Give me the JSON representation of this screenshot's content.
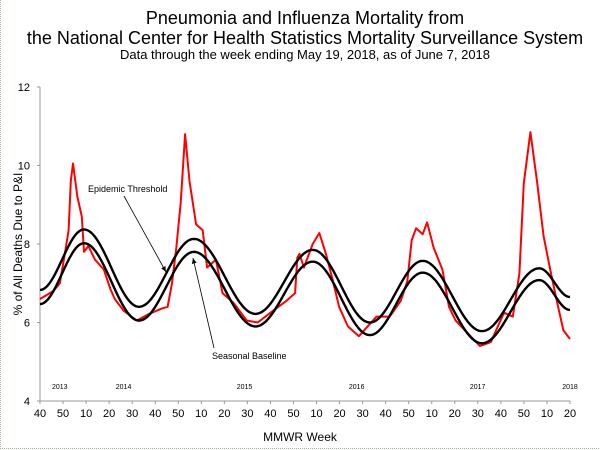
{
  "chart_data": {
    "type": "line",
    "title": "Pneumonia and Influenza Mortality from",
    "title_line2": "the National Center for Health Statistics Mortality Surveillance System",
    "subtitle": "Data through the week ending May 19, 2018, as of June 7, 2018",
    "xlabel": "MMWR Week",
    "ylabel": "% of All Deaths Due to P&I",
    "ylim": [
      4,
      12
    ],
    "yticks": [
      "4",
      "6",
      "8",
      "10",
      "12"
    ],
    "xlim": [
      "2013-W40",
      "2018-W20"
    ],
    "xtick_labels": [
      "40",
      "50",
      "10",
      "20",
      "30",
      "40",
      "50",
      "10",
      "20",
      "30",
      "40",
      "50",
      "10",
      "20",
      "30",
      "40",
      "50",
      "10",
      "20",
      "30",
      "40",
      "50",
      "10",
      "20"
    ],
    "year_labels": [
      {
        "label": "2013",
        "at": "2013-W49"
      },
      {
        "label": "2014",
        "at": "2014-W26"
      },
      {
        "label": "2015",
        "at": "2015-W28"
      },
      {
        "label": "2016",
        "at": "2016-W27"
      },
      {
        "label": "2017",
        "at": "2017-W30"
      },
      {
        "label": "2018",
        "at": "2018-W20"
      }
    ],
    "grid": false,
    "annotations": [
      {
        "text": "Epidemic Threshold",
        "target": "epidemic-threshold"
      },
      {
        "text": "Seasonal Baseline",
        "target": "seasonal-baseline"
      }
    ],
    "colors": {
      "observed": "#ff0000",
      "baseline": "#000000",
      "threshold": "#000000"
    },
    "series": [
      {
        "id": "observed",
        "points": [
          [
            "2013-W40",
            6.6
          ],
          [
            "2013-W46",
            6.8
          ],
          [
            "2013-W49",
            7.0
          ],
          [
            "2013-W51",
            7.65
          ],
          [
            "2014-W01",
            8.35
          ],
          [
            "2014-W02",
            9.6
          ],
          [
            "2014-W03",
            10.05
          ],
          [
            "2014-W05",
            9.2
          ],
          [
            "2014-W07",
            8.7
          ],
          [
            "2014-W08",
            7.8
          ],
          [
            "2014-W10",
            7.95
          ],
          [
            "2014-W13",
            7.6
          ],
          [
            "2014-W17",
            7.35
          ],
          [
            "2014-W20",
            6.85
          ],
          [
            "2014-W22",
            6.6
          ],
          [
            "2014-W26",
            6.3
          ],
          [
            "2014-W32",
            6.05
          ],
          [
            "2014-W37",
            6.2
          ],
          [
            "2014-W43",
            6.35
          ],
          [
            "2014-W46",
            6.4
          ],
          [
            "2014-W48",
            7.0
          ],
          [
            "2014-W50",
            7.9
          ],
          [
            "2014-W52",
            9.05
          ],
          [
            "2015-W01",
            10.8
          ],
          [
            "2015-W03",
            9.6
          ],
          [
            "2015-W06",
            8.5
          ],
          [
            "2015-W09",
            8.35
          ],
          [
            "2015-W11",
            7.4
          ],
          [
            "2015-W15",
            7.6
          ],
          [
            "2015-W18",
            6.75
          ],
          [
            "2015-W23",
            6.5
          ],
          [
            "2015-W29",
            6.05
          ],
          [
            "2015-W34",
            6.0
          ],
          [
            "2015-W41",
            6.3
          ],
          [
            "2015-W47",
            6.55
          ],
          [
            "2015-W51",
            6.75
          ],
          [
            "2015-W52",
            7.65
          ],
          [
            "2016-W01",
            7.75
          ],
          [
            "2016-W03",
            7.4
          ],
          [
            "2016-W07",
            8.0
          ],
          [
            "2016-W10",
            8.28
          ],
          [
            "2016-W13",
            7.75
          ],
          [
            "2016-W16",
            7.1
          ],
          [
            "2016-W19",
            6.4
          ],
          [
            "2016-W23",
            5.9
          ],
          [
            "2016-W28",
            5.65
          ],
          [
            "2016-W36",
            6.15
          ],
          [
            "2016-W42",
            6.15
          ],
          [
            "2016-W47",
            6.55
          ],
          [
            "2016-W50",
            7.05
          ],
          [
            "2016-W52",
            8.1
          ],
          [
            "2017-W02",
            8.4
          ],
          [
            "2017-W05",
            8.25
          ],
          [
            "2017-W07",
            8.55
          ],
          [
            "2017-W10",
            7.9
          ],
          [
            "2017-W14",
            7.35
          ],
          [
            "2017-W17",
            6.4
          ],
          [
            "2017-W20",
            6.05
          ],
          [
            "2017-W26",
            5.7
          ],
          [
            "2017-W31",
            5.4
          ],
          [
            "2017-W36",
            5.5
          ],
          [
            "2017-W42",
            6.25
          ],
          [
            "2017-W46",
            6.15
          ],
          [
            "2017-W49",
            7.25
          ],
          [
            "2017-W51",
            9.55
          ],
          [
            "2018-W02",
            10.85
          ],
          [
            "2018-W05",
            9.6
          ],
          [
            "2018-W08",
            8.2
          ],
          [
            "2018-W11",
            7.35
          ],
          [
            "2018-W14",
            6.55
          ],
          [
            "2018-W17",
            5.8
          ],
          [
            "2018-W20",
            5.58
          ]
        ]
      },
      {
        "id": "epidemic-threshold",
        "name": "Epidemic Threshold",
        "points": [
          [
            "2013-W40",
            6.83
          ],
          [
            "2014-W08",
            8.37
          ],
          [
            "2014-W33",
            6.4
          ],
          [
            "2015-W05",
            8.13
          ],
          [
            "2015-W33",
            6.22
          ],
          [
            "2016-W07",
            7.85
          ],
          [
            "2016-W33",
            6.0
          ],
          [
            "2017-W05",
            7.57
          ],
          [
            "2017-W32",
            5.78
          ],
          [
            "2018-W06",
            7.38
          ],
          [
            "2018-W20",
            6.65
          ]
        ]
      },
      {
        "id": "seasonal-baseline",
        "name": "Seasonal Baseline",
        "points": [
          [
            "2013-W40",
            6.47
          ],
          [
            "2014-W08",
            8.02
          ],
          [
            "2014-W33",
            6.05
          ],
          [
            "2015-W05",
            7.8
          ],
          [
            "2015-W33",
            5.9
          ],
          [
            "2016-W07",
            7.55
          ],
          [
            "2016-W33",
            5.68
          ],
          [
            "2017-W05",
            7.27
          ],
          [
            "2017-W32",
            5.47
          ],
          [
            "2018-W06",
            7.08
          ],
          [
            "2018-W20",
            6.32
          ]
        ]
      }
    ]
  }
}
